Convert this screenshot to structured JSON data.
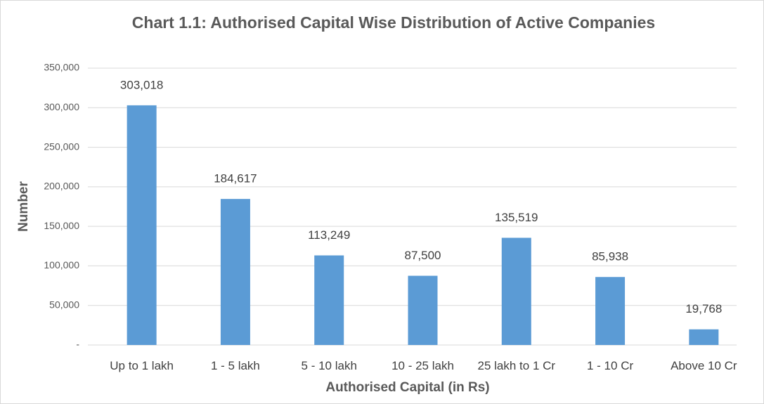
{
  "chart_data": {
    "type": "bar",
    "title": "Chart 1.1: Authorised Capital Wise Distribution of Active Companies",
    "x_label": "Authorised Capital (in Rs)",
    "y_label": "Number",
    "categories": [
      "Up to 1 lakh",
      "1 - 5 lakh",
      "5 - 10 lakh",
      "10 - 25 lakh",
      "25 lakh to 1 Cr",
      "1 - 10 Cr",
      "Above 10 Cr"
    ],
    "values": [
      303018,
      184617,
      113249,
      87500,
      135519,
      85938,
      19768
    ],
    "value_labels": [
      "303,018",
      "184,617",
      "113,249",
      "87,500",
      "135,519",
      "85,938",
      "19,768"
    ],
    "color": "#5b9bd5",
    "ylim": [
      0,
      350000
    ],
    "yticks": [
      {
        "value": 0,
        "label": "-"
      },
      {
        "value": 50000,
        "label": "50,000"
      },
      {
        "value": 100000,
        "label": "100,000"
      },
      {
        "value": 150000,
        "label": "150,000"
      },
      {
        "value": 200000,
        "label": "200,000"
      },
      {
        "value": 250000,
        "label": "250,000"
      },
      {
        "value": 300000,
        "label": "300,000"
      },
      {
        "value": 350000,
        "label": "350,000"
      }
    ],
    "grid": true
  }
}
